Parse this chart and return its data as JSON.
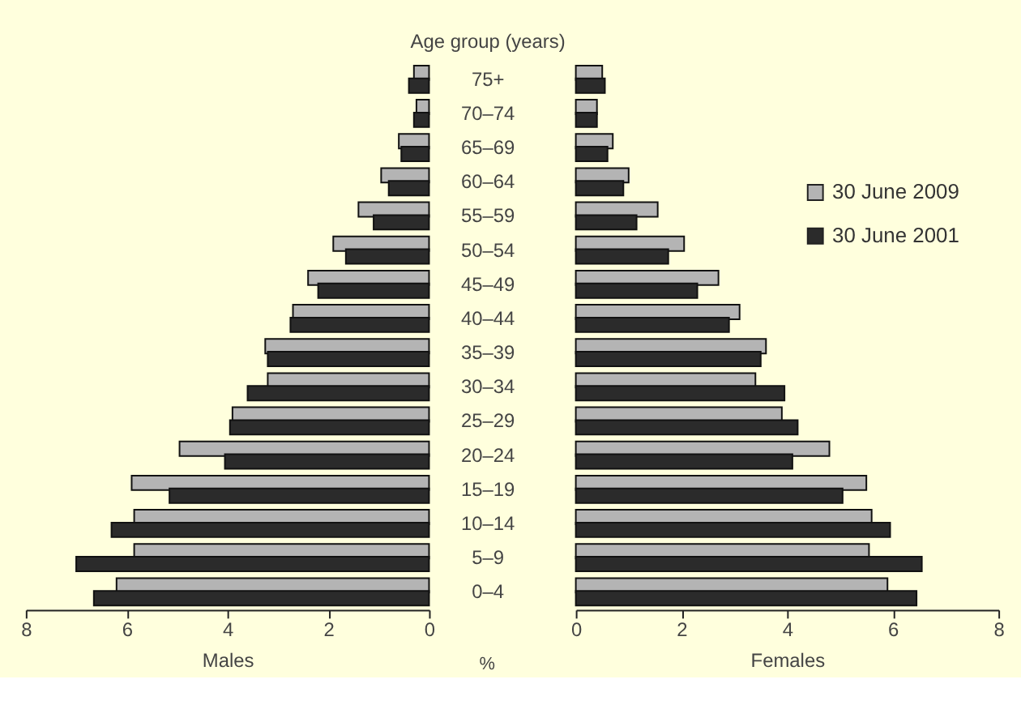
{
  "chart_data": [
    {
      "type": "bar",
      "orientation": "horizontal",
      "ylabel": "Age group (years)",
      "xlabel": "Males",
      "annotations": [
        "%"
      ],
      "categories": [
        "75+",
        "70–74",
        "65–69",
        "60–64",
        "55–59",
        "50–54",
        "45–49",
        "40–44",
        "35–39",
        "30–34",
        "25–29",
        "20–24",
        "15–19",
        "10–14",
        "5–9",
        "0–4"
      ],
      "series": [
        {
          "color": "#b4b4b4",
          "values": [
            0.3,
            0.25,
            0.6,
            0.95,
            1.4,
            1.9,
            2.4,
            2.7,
            3.25,
            3.2,
            3.9,
            4.95,
            5.9,
            5.85,
            5.85,
            6.2
          ]
        },
        {
          "color": "#2b2b2b",
          "values": [
            0.4,
            0.3,
            0.55,
            0.8,
            1.1,
            1.65,
            2.2,
            2.75,
            3.2,
            3.6,
            3.95,
            4.05,
            5.15,
            6.3,
            7.0,
            6.65
          ]
        }
      ],
      "xlim": [
        8,
        0
      ],
      "xticks": [
        8,
        6,
        4,
        2,
        0
      ],
      "grid": false,
      "legend": false
    },
    {
      "type": "bar",
      "orientation": "horizontal",
      "xlabel": "Females",
      "categories": [
        null,
        null,
        null,
        null,
        null,
        null,
        null,
        null,
        null,
        null,
        null,
        null,
        null,
        null,
        null,
        null
      ],
      "series": [
        {
          "name": "30 June 2009",
          "color": "#b4b4b4",
          "values": [
            0.5,
            0.4,
            0.7,
            1.0,
            1.55,
            2.05,
            2.7,
            3.1,
            3.6,
            3.4,
            3.9,
            4.8,
            5.5,
            5.6,
            5.55,
            5.9
          ]
        },
        {
          "name": "30 June 2001",
          "color": "#2b2b2b",
          "values": [
            0.55,
            0.4,
            0.6,
            0.9,
            1.15,
            1.75,
            2.3,
            2.9,
            3.5,
            3.95,
            4.2,
            4.1,
            5.05,
            5.95,
            6.55,
            6.45
          ]
        }
      ],
      "xlim": [
        0,
        8
      ],
      "xticks": [
        0,
        2,
        4,
        6,
        8
      ],
      "grid": false,
      "legend": "right"
    }
  ]
}
